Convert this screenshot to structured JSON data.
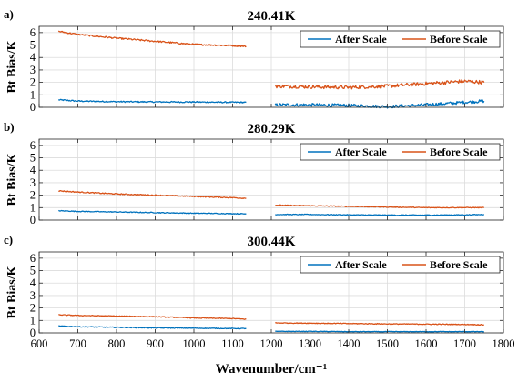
{
  "chart_data": [
    {
      "type": "line",
      "panel_label": "a)",
      "title": "240.41K",
      "ylabel": "Bt Bias/K",
      "xlabel": "",
      "xlim": [
        600,
        1800
      ],
      "ylim": [
        0,
        6.5
      ],
      "xticks": [],
      "yticks": [
        0,
        1,
        2,
        3,
        4,
        5,
        6
      ],
      "grid": true,
      "legend_position": "top-right",
      "series": [
        {
          "name": "After Scale",
          "color": "#0072BD",
          "segments": [
            {
              "x": [
                650,
                700,
                800,
                900,
                1000,
                1100,
                1135
              ],
              "y": [
                0.6,
                0.5,
                0.45,
                0.43,
                0.42,
                0.4,
                0.4
              ],
              "noise": 0.05
            },
            {
              "x": [
                1210,
                1300,
                1400,
                1500,
                1600,
                1700,
                1750
              ],
              "y": [
                0.2,
                0.2,
                0.15,
                0.05,
                0.2,
                0.4,
                0.5
              ],
              "noise": 0.12
            }
          ]
        },
        {
          "name": "Before Scale",
          "color": "#D95319",
          "segments": [
            {
              "x": [
                650,
                700,
                800,
                900,
                1000,
                1100,
                1135
              ],
              "y": [
                6.1,
                5.85,
                5.55,
                5.3,
                5.05,
                4.95,
                4.9
              ],
              "noise": 0.06
            },
            {
              "x": [
                1210,
                1300,
                1400,
                1500,
                1600,
                1700,
                1750
              ],
              "y": [
                1.7,
                1.65,
                1.6,
                1.7,
                1.9,
                2.1,
                2.0
              ],
              "noise": 0.14
            }
          ]
        }
      ]
    },
    {
      "type": "line",
      "panel_label": "b)",
      "title": "280.29K",
      "ylabel": "Bt Bias/K",
      "xlabel": "",
      "xlim": [
        600,
        1800
      ],
      "ylim": [
        0,
        6.5
      ],
      "xticks": [],
      "yticks": [
        0,
        1,
        2,
        3,
        4,
        5,
        6
      ],
      "grid": true,
      "legend_position": "top-right",
      "series": [
        {
          "name": "After Scale",
          "color": "#0072BD",
          "segments": [
            {
              "x": [
                650,
                700,
                800,
                900,
                1000,
                1100,
                1135
              ],
              "y": [
                0.75,
                0.7,
                0.65,
                0.6,
                0.55,
                0.52,
                0.5
              ],
              "noise": 0.03
            },
            {
              "x": [
                1210,
                1300,
                1400,
                1500,
                1600,
                1700,
                1750
              ],
              "y": [
                0.45,
                0.45,
                0.42,
                0.4,
                0.4,
                0.42,
                0.45
              ],
              "noise": 0.03
            }
          ]
        },
        {
          "name": "Before Scale",
          "color": "#D95319",
          "segments": [
            {
              "x": [
                650,
                700,
                800,
                900,
                1000,
                1100,
                1135
              ],
              "y": [
                2.35,
                2.25,
                2.1,
                2.0,
                1.9,
                1.8,
                1.75
              ],
              "noise": 0.04
            },
            {
              "x": [
                1210,
                1300,
                1400,
                1500,
                1600,
                1700,
                1750
              ],
              "y": [
                1.2,
                1.15,
                1.1,
                1.05,
                1.0,
                1.0,
                1.0
              ],
              "noise": 0.03
            }
          ]
        }
      ]
    },
    {
      "type": "line",
      "panel_label": "c)",
      "title": "300.44K",
      "ylabel": "Bt Bias/K",
      "xlabel": "Wavenumber/cm⁻¹",
      "xlim": [
        600,
        1800
      ],
      "ylim": [
        0,
        6.5
      ],
      "xticks": [
        600,
        700,
        800,
        900,
        1000,
        1100,
        1200,
        1300,
        1400,
        1500,
        1600,
        1700,
        1800
      ],
      "yticks": [
        0,
        1,
        2,
        3,
        4,
        5,
        6
      ],
      "grid": true,
      "legend_position": "top-right",
      "series": [
        {
          "name": "After Scale",
          "color": "#0072BD",
          "segments": [
            {
              "x": [
                650,
                700,
                800,
                900,
                1000,
                1100,
                1135
              ],
              "y": [
                0.55,
                0.5,
                0.45,
                0.4,
                0.38,
                0.35,
                0.35
              ],
              "noise": 0.03
            },
            {
              "x": [
                1210,
                1300,
                1400,
                1500,
                1600,
                1700,
                1750
              ],
              "y": [
                0.12,
                0.12,
                0.1,
                0.1,
                0.1,
                0.1,
                0.1
              ],
              "noise": 0.02
            }
          ]
        },
        {
          "name": "Before Scale",
          "color": "#D95319",
          "segments": [
            {
              "x": [
                650,
                700,
                800,
                900,
                1000,
                1100,
                1135
              ],
              "y": [
                1.45,
                1.4,
                1.35,
                1.3,
                1.2,
                1.15,
                1.1
              ],
              "noise": 0.03
            },
            {
              "x": [
                1210,
                1300,
                1400,
                1500,
                1600,
                1700,
                1750
              ],
              "y": [
                0.8,
                0.78,
                0.75,
                0.72,
                0.7,
                0.68,
                0.65
              ],
              "noise": 0.03
            }
          ]
        }
      ]
    }
  ]
}
